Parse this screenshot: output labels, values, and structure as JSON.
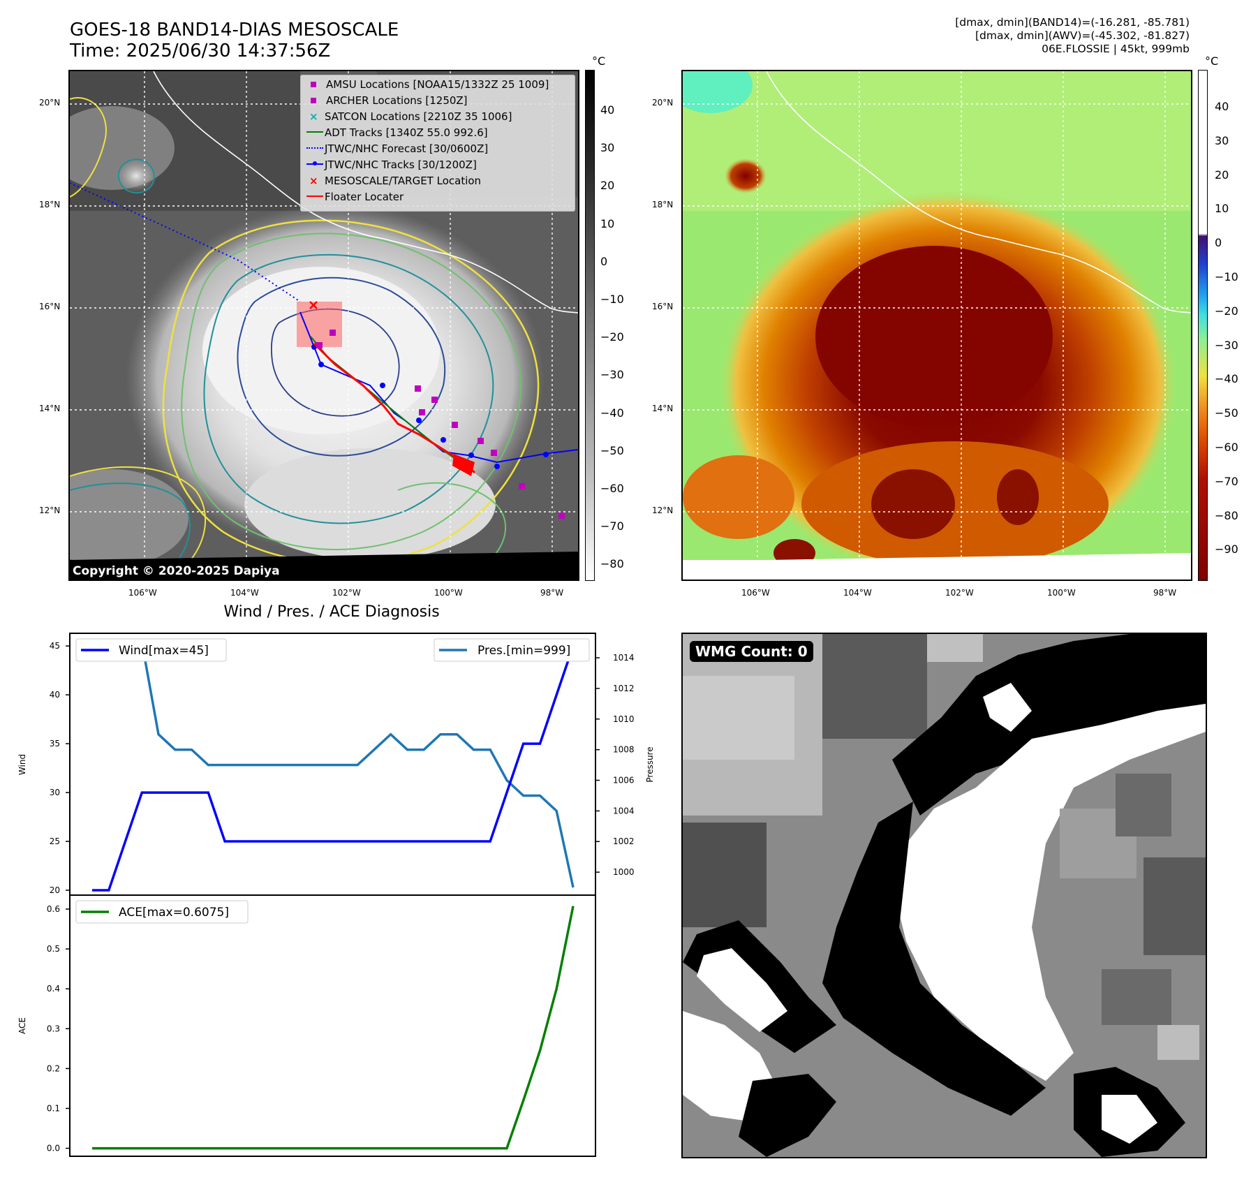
{
  "header": {
    "title_line1": "GOES-18 BAND14-DIAS MESOSCALE",
    "title_line2": "Time: 2025/06/30 14:37:56Z",
    "right_line1": "[dmax, dmin](BAND14)=(-16.281, -85.781)",
    "right_line2": "[dmax, dmin](AWV)=(-45.302, -81.827)",
    "right_line3": "06E.FLOSSIE | 45kt, 999mb"
  },
  "map_axes": {
    "lat_labels": [
      "20°N",
      "18°N",
      "16°N",
      "14°N",
      "12°N"
    ],
    "lon_labels": [
      "106°W",
      "104°W",
      "102°W",
      "100°W",
      "98°W"
    ]
  },
  "colorbar_left": {
    "unit": "°C",
    "ticks": [
      "40",
      "30",
      "20",
      "10",
      "0",
      "−10",
      "−20",
      "−30",
      "−40",
      "−50",
      "−60",
      "−70",
      "−80"
    ]
  },
  "colorbar_right": {
    "unit": "°C",
    "ticks": [
      "40",
      "30",
      "20",
      "10",
      "0",
      "−10",
      "−20",
      "−30",
      "−40",
      "−50",
      "−60",
      "−70",
      "−80",
      "−90"
    ]
  },
  "legend": {
    "items": [
      {
        "label": "AMSU Locations [NOAA15/1332Z 25 1009]",
        "color": "#c000c0",
        "marker": "square"
      },
      {
        "label": "ARCHER Locations [1250Z]",
        "color": "#c000c0",
        "marker": "square"
      },
      {
        "label": "SATCON Locations [2210Z 35 1006]",
        "color": "#00b0b0",
        "marker": "x"
      },
      {
        "label": "ADT Tracks [1340Z 55.0 992.6]",
        "color": "#008000",
        "marker": "line"
      },
      {
        "label": "JTWC/NHC Forecast [30/0600Z]",
        "color": "#0000ff",
        "marker": "dotted"
      },
      {
        "label": "JTWC/NHC Tracks [30/1200Z]",
        "color": "#0000ff",
        "marker": "line-dot"
      },
      {
        "label": "MESOSCALE/TARGET Location",
        "color": "#ff0000",
        "marker": "x"
      },
      {
        "label": "Floater Locater",
        "color": "#ff0000",
        "marker": "line"
      }
    ]
  },
  "copyright": "Copyright © 2020-2025 Dapiya",
  "wmg_label": "WMG Count: 0",
  "chart_data": [
    {
      "type": "line",
      "title": "Wind / Pres. / ACE Diagnosis",
      "ylabel": "Wind",
      "ylabel_right": "Pressure",
      "ylim": [
        19.5,
        46.3
      ],
      "ylim_right": [
        998.5,
        1015.6
      ],
      "yticks": [
        20,
        25,
        30,
        35,
        40,
        45
      ],
      "yticks_right": [
        1000,
        1002,
        1004,
        1006,
        1008,
        1010,
        1012,
        1014
      ],
      "x": [
        0,
        1,
        2,
        3,
        4,
        5,
        6,
        7,
        8,
        9,
        10,
        11,
        12,
        13,
        14,
        15,
        16,
        17,
        18,
        19,
        20,
        21,
        22,
        23,
        24,
        25,
        26,
        27,
        28,
        29
      ],
      "series": [
        {
          "name": "Wind[max=45]",
          "axis": "left",
          "color": "#0000ff",
          "values": [
            20,
            20,
            25,
            30,
            30,
            30,
            30,
            30,
            25,
            25,
            25,
            25,
            25,
            25,
            25,
            25,
            25,
            25,
            25,
            25,
            25,
            25,
            25,
            25,
            25,
            30,
            35,
            35,
            40,
            45
          ]
        },
        {
          "name": "Pres.[min=999]",
          "axis": "right",
          "color": "#1f77b4",
          "values": [
            1015,
            1015,
            1015,
            1015,
            1009,
            1008,
            1008,
            1007,
            1007,
            1007,
            1007,
            1007,
            1007,
            1007,
            1007,
            1007,
            1007,
            1008,
            1009,
            1008,
            1008,
            1009,
            1009,
            1008,
            1008,
            1006,
            1005,
            1005,
            1004,
            999
          ]
        }
      ]
    },
    {
      "type": "line",
      "ylabel": "ACE",
      "ylim": [
        -0.02,
        0.635
      ],
      "yticks": [
        0.0,
        0.1,
        0.2,
        0.3,
        0.4,
        0.5,
        0.6
      ],
      "x": [
        0,
        1,
        2,
        3,
        4,
        5,
        6,
        7,
        8,
        9,
        10,
        11,
        12,
        13,
        14,
        15,
        16,
        17,
        18,
        19,
        20,
        21,
        22,
        23,
        24,
        25,
        26,
        27,
        28,
        29
      ],
      "series": [
        {
          "name": "ACE[max=0.6075]",
          "color": "#008000",
          "values": [
            0,
            0,
            0,
            0,
            0,
            0,
            0,
            0,
            0,
            0,
            0,
            0,
            0,
            0,
            0,
            0,
            0,
            0,
            0,
            0,
            0,
            0,
            0,
            0,
            0,
            0,
            0.12,
            0.245,
            0.4,
            0.6075
          ]
        }
      ]
    }
  ]
}
